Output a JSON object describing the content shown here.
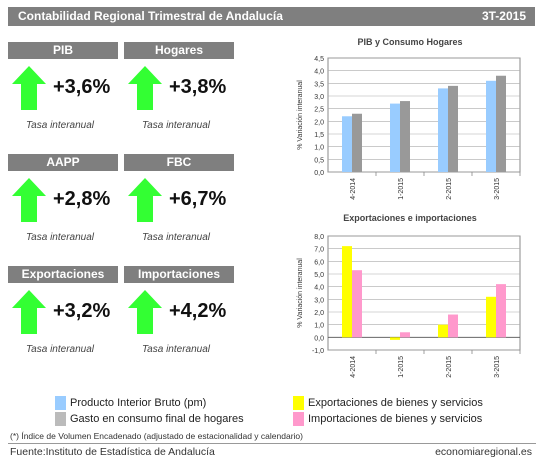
{
  "header": {
    "title": "Contabilidad Regional Trimestral de Andalucía",
    "period": "3T-2015"
  },
  "kpis": [
    {
      "label": "PIB",
      "value": "+3,6%",
      "caption": "Tasa interanual",
      "trend": "up"
    },
    {
      "label": "Hogares",
      "value": "+3,8%",
      "caption": "Tasa interanual",
      "trend": "up"
    },
    {
      "label": "AAPP",
      "value": "+2,8%",
      "caption": "Tasa interanual",
      "trend": "up"
    },
    {
      "label": "FBC",
      "value": "+6,7%",
      "caption": "Tasa interanual",
      "trend": "up"
    },
    {
      "label": "Exportaciones",
      "value": "+3,2%",
      "caption": "Tasa interanual",
      "trend": "up"
    },
    {
      "label": "Importaciones",
      "value": "+4,2%",
      "caption": "Tasa interanual",
      "trend": "up"
    }
  ],
  "colors": {
    "header": "#7f7f7f",
    "arrow": "#33ff33",
    "pib": "#99ccff",
    "hogares": "#999999",
    "export": "#ffff00",
    "import": "#ff99cc"
  },
  "chart_data": [
    {
      "type": "bar",
      "title": "PIB y Consumo Hogares",
      "ylabel": "% Variación interanual",
      "categories": [
        "4-2014",
        "1-2015",
        "2-2015",
        "3-2015"
      ],
      "series": [
        {
          "name": "Producto Interior Bruto (pm)",
          "values": [
            2.2,
            2.7,
            3.3,
            3.6
          ]
        },
        {
          "name": "Gasto en consumo final de hogares",
          "values": [
            2.3,
            2.8,
            3.4,
            3.8
          ]
        }
      ],
      "ylim": [
        0,
        4.5
      ],
      "yticks": [
        "0,0",
        "0,5",
        "1,0",
        "1,5",
        "2,0",
        "2,5",
        "3,0",
        "3,5",
        "4,0",
        "4,5"
      ],
      "grid": true
    },
    {
      "type": "bar",
      "title": "Exportaciones e importaciones",
      "ylabel": "% Variación interanual",
      "categories": [
        "4-2014",
        "1-2015",
        "2-2015",
        "3-2015"
      ],
      "series": [
        {
          "name": "Exportaciones de bienes y servicios",
          "values": [
            7.2,
            -0.2,
            1.0,
            3.2
          ]
        },
        {
          "name": "Importaciones de bienes y servicios",
          "values": [
            5.3,
            0.4,
            1.8,
            4.2
          ]
        }
      ],
      "ylim": [
        -1,
        8
      ],
      "yticks": [
        "-1,0",
        "0,0",
        "1,0",
        "2,0",
        "3,0",
        "4,0",
        "5,0",
        "6,0",
        "7,0",
        "8,0"
      ],
      "grid": true
    }
  ],
  "legend": [
    "Producto Interior Bruto (pm)",
    "Gasto en consumo final de hogares",
    "Exportaciones de bienes y servicios",
    "Importaciones de bienes y servicios"
  ],
  "note": "(*) Índice de Volumen Encadenado (adjustado de estacionalidad y calendario)",
  "footer": {
    "source": "Fuente:Instituto de Estadística de Andalucía",
    "site": "economiaregional.es"
  }
}
